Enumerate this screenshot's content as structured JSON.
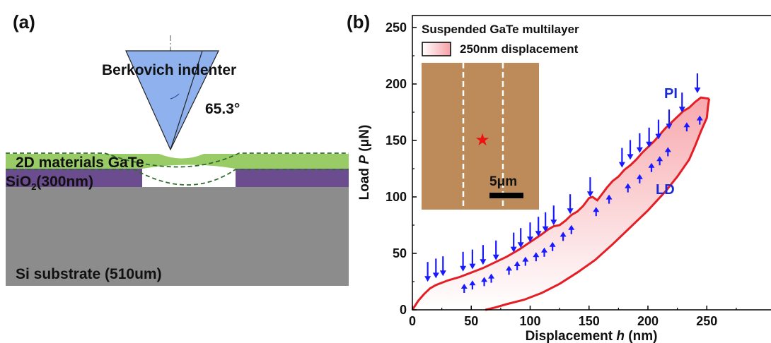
{
  "panel_a": {
    "label": "(a)",
    "indenter_label": "Berkovich indenter",
    "angle_label": "65.3°",
    "gate_label": "2D materials GaTe",
    "sio2_label_main": "SiO",
    "sio2_label_sub": "2",
    "sio2_label_rest": "(300nm)",
    "si_label": "Si substrate (510um)",
    "colors": {
      "indenter": "#8fb1ee",
      "gate": "#99cc66",
      "sio2": "#6b4d8f",
      "si": "#8c8c8c",
      "dashed": "#2e6b2e"
    }
  },
  "panel_b": {
    "label": "(b)",
    "legend_title": "Suspended GaTe multilayer",
    "legend_entry": "250nm displacement",
    "inset_scale_label": "5μm",
    "annotation_pi": "PI",
    "annotation_ld": "LD",
    "colors": {
      "curve": "#e51e25",
      "arrow": "#1a1aff",
      "fill": "#f7c8c8",
      "inset_bg": "#bd8a5a",
      "star": "#ee1111"
    }
  },
  "chart_data": {
    "type": "line",
    "xlabel_prefix": "Displacement ",
    "xlabel_var": "h",
    "xlabel_suffix": " (nm)",
    "ylabel_prefix": "Load ",
    "ylabel_var": "P",
    "ylabel_suffix": " (μN)",
    "xlim": [
      0,
      275
    ],
    "ylim": [
      0,
      260
    ],
    "xticks": [
      0,
      50,
      100,
      150,
      200,
      250
    ],
    "yticks": [
      0,
      50,
      100,
      150,
      200,
      250
    ],
    "series": [
      {
        "name": "loading",
        "points": [
          [
            0,
            0
          ],
          [
            5,
            8
          ],
          [
            10,
            14
          ],
          [
            15,
            19
          ],
          [
            20,
            22
          ],
          [
            30,
            26
          ],
          [
            40,
            29
          ],
          [
            50,
            33
          ],
          [
            60,
            37
          ],
          [
            70,
            42
          ],
          [
            80,
            47
          ],
          [
            90,
            53
          ],
          [
            100,
            60
          ],
          [
            110,
            67
          ],
          [
            115,
            71
          ],
          [
            120,
            74
          ],
          [
            125,
            75
          ],
          [
            130,
            79
          ],
          [
            135,
            84
          ],
          [
            140,
            87
          ],
          [
            145,
            92
          ],
          [
            150,
            99
          ],
          [
            153,
            100
          ],
          [
            157,
            97
          ],
          [
            160,
            101
          ],
          [
            165,
            108
          ],
          [
            170,
            114
          ],
          [
            175,
            118
          ],
          [
            180,
            124
          ],
          [
            185,
            128
          ],
          [
            190,
            133
          ],
          [
            195,
            139
          ],
          [
            200,
            144
          ],
          [
            205,
            149
          ],
          [
            210,
            155
          ],
          [
            215,
            161
          ],
          [
            220,
            166
          ],
          [
            225,
            171
          ],
          [
            230,
            176
          ],
          [
            235,
            179
          ],
          [
            240,
            184
          ],
          [
            245,
            188
          ],
          [
            252,
            187
          ]
        ]
      },
      {
        "name": "unloading",
        "points": [
          [
            252,
            187
          ],
          [
            251,
            180
          ],
          [
            250,
            170
          ],
          [
            245,
            158
          ],
          [
            240,
            145
          ],
          [
            235,
            133
          ],
          [
            225,
            118
          ],
          [
            215,
            105
          ],
          [
            200,
            88
          ],
          [
            185,
            73
          ],
          [
            170,
            58
          ],
          [
            155,
            44
          ],
          [
            140,
            33
          ],
          [
            125,
            23
          ],
          [
            110,
            15
          ],
          [
            95,
            9
          ],
          [
            80,
            5
          ],
          [
            70,
            2
          ],
          [
            62,
            0
          ]
        ]
      }
    ],
    "pop_in_arrows_down": [
      [
        13,
        23
      ],
      [
        20,
        26
      ],
      [
        26,
        28
      ],
      [
        43,
        32
      ],
      [
        51,
        34
      ],
      [
        60,
        38
      ],
      [
        71,
        42
      ],
      [
        86,
        49
      ],
      [
        92,
        53
      ],
      [
        100,
        58
      ],
      [
        107,
        63
      ],
      [
        113,
        67
      ],
      [
        120,
        73
      ],
      [
        134,
        83
      ],
      [
        151,
        98
      ],
      [
        178,
        124
      ],
      [
        185,
        131
      ],
      [
        193,
        137
      ],
      [
        201,
        142
      ],
      [
        209,
        149
      ],
      [
        218,
        158
      ],
      [
        229,
        173
      ],
      [
        242,
        190
      ]
    ],
    "pop_in_arrows_up": [
      [
        44,
        25
      ],
      [
        51,
        28
      ],
      [
        61,
        31
      ],
      [
        67,
        34
      ],
      [
        82,
        41
      ],
      [
        89,
        45
      ],
      [
        96,
        49
      ],
      [
        105,
        53
      ],
      [
        112,
        57
      ],
      [
        119,
        62
      ],
      [
        128,
        71
      ],
      [
        135,
        77
      ],
      [
        156,
        93
      ],
      [
        167,
        104
      ],
      [
        183,
        114
      ],
      [
        193,
        122
      ],
      [
        203,
        132
      ],
      [
        210,
        138
      ],
      [
        217,
        146
      ],
      [
        233,
        168
      ],
      [
        244,
        174
      ]
    ]
  }
}
